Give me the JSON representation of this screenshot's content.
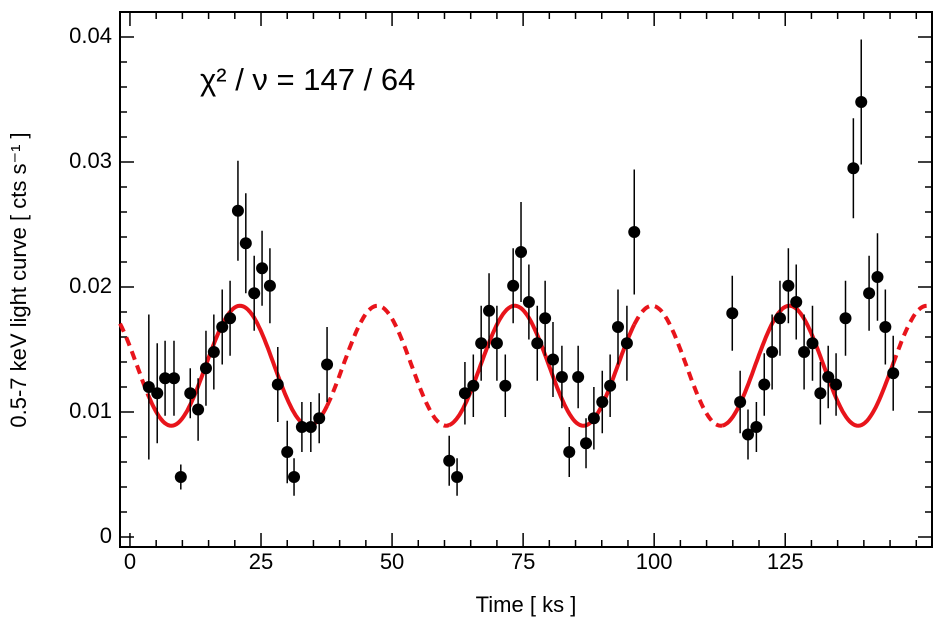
{
  "chart_data": {
    "type": "scatter",
    "annotation": "χ² / ν = 147 / 64",
    "xlabel": "Time [ ks ]",
    "ylabel": "0.5-7 keV light curve [ cts s⁻¹ ]",
    "xlim": [
      -1.9,
      153
    ],
    "ylim": [
      -0.0008,
      0.042
    ],
    "xticks": [
      0,
      25,
      50,
      75,
      100,
      125
    ],
    "yticks": [
      0,
      0.01,
      0.02,
      0.03,
      0.04
    ],
    "xminorticks": [
      5,
      10,
      15,
      20,
      30,
      35,
      40,
      45,
      55,
      60,
      65,
      70,
      80,
      85,
      90,
      95,
      105,
      110,
      115,
      120,
      130,
      135,
      140,
      145,
      150
    ],
    "yminorticks": [
      0.002,
      0.004,
      0.006,
      0.008,
      0.012,
      0.014,
      0.016,
      0.018,
      0.022,
      0.024,
      0.026,
      0.028,
      0.032,
      0.034,
      0.036,
      0.038
    ],
    "series": [
      {
        "color": "#000000",
        "x": [
          3.6,
          5.2,
          6.7,
          8.4,
          9.7,
          11.5,
          13.0,
          14.5,
          16.0,
          17.6,
          19.1,
          20.6,
          22.1,
          23.7,
          25.2,
          26.7,
          28.2,
          30.0,
          31.3,
          32.8,
          34.5,
          36.1,
          37.6,
          60.9,
          62.4,
          63.9,
          65.5,
          67.0,
          68.5,
          70.0,
          71.6,
          73.1,
          74.6,
          76.1,
          77.7,
          79.2,
          80.7,
          82.4,
          83.8,
          85.5,
          87.0,
          88.5,
          90.1,
          91.6,
          93.1,
          94.8,
          96.2,
          114.9,
          116.4,
          117.9,
          119.5,
          121.0,
          122.5,
          124.0,
          125.6,
          127.1,
          128.6,
          130.2,
          131.7,
          133.2,
          134.7,
          136.5,
          138.0,
          139.5,
          141.0,
          142.6,
          144.1,
          145.6
        ],
        "values": [
          0.012,
          0.0115,
          0.0127,
          0.0127,
          0.0048,
          0.0115,
          0.0102,
          0.0135,
          0.0148,
          0.0168,
          0.0175,
          0.0261,
          0.0235,
          0.0195,
          0.0215,
          0.0201,
          0.0122,
          0.0068,
          0.0048,
          0.0088,
          0.0088,
          0.0095,
          0.0138,
          0.0061,
          0.0048,
          0.0115,
          0.0121,
          0.0155,
          0.0181,
          0.0155,
          0.0121,
          0.0201,
          0.0228,
          0.0188,
          0.0155,
          0.0175,
          0.0142,
          0.0128,
          0.0068,
          0.0128,
          0.0075,
          0.0095,
          0.0108,
          0.0121,
          0.0168,
          0.0155,
          0.0244,
          0.0179,
          0.0108,
          0.0082,
          0.0088,
          0.0122,
          0.0148,
          0.0175,
          0.0201,
          0.0188,
          0.0148,
          0.0155,
          0.0115,
          0.0128,
          0.0122,
          0.0175,
          0.0295,
          0.0348,
          0.0195,
          0.0208,
          0.0168,
          0.0131
        ],
        "errors": [
          0.0058,
          0.004,
          0.003,
          0.003,
          0.001,
          0.002,
          0.0025,
          0.003,
          0.003,
          0.003,
          0.003,
          0.004,
          0.004,
          0.003,
          0.003,
          0.003,
          0.003,
          0.0025,
          0.0015,
          0.002,
          0.002,
          0.002,
          0.003,
          0.002,
          0.0015,
          0.0025,
          0.0025,
          0.003,
          0.003,
          0.003,
          0.0025,
          0.003,
          0.004,
          0.003,
          0.003,
          0.003,
          0.003,
          0.0025,
          0.002,
          0.0025,
          0.002,
          0.0025,
          0.0025,
          0.0025,
          0.003,
          0.003,
          0.005,
          0.003,
          0.0025,
          0.002,
          0.002,
          0.0025,
          0.003,
          0.003,
          0.003,
          0.003,
          0.003,
          0.003,
          0.0025,
          0.0025,
          0.0025,
          0.003,
          0.004,
          0.005,
          0.003,
          0.0035,
          0.003,
          0.003
        ]
      }
    ],
    "model": {
      "color": "#e8141b",
      "mean": 0.0137,
      "amplitude": 0.0048,
      "period": 26.2,
      "peak": 21.0,
      "segments": [
        {
          "style": "dashed",
          "x": [
            -1.9,
            3.6
          ]
        },
        {
          "style": "solid",
          "x": [
            3.6,
            37.6
          ]
        },
        {
          "style": "dashed",
          "x": [
            37.6,
            60.9
          ]
        },
        {
          "style": "solid",
          "x": [
            60.9,
            96.2
          ]
        },
        {
          "style": "dashed",
          "x": [
            96.2,
            113
          ]
        },
        {
          "style": "solid",
          "x": [
            113,
            145.6
          ]
        },
        {
          "style": "dashed",
          "x": [
            145.6,
            153
          ]
        }
      ]
    }
  }
}
